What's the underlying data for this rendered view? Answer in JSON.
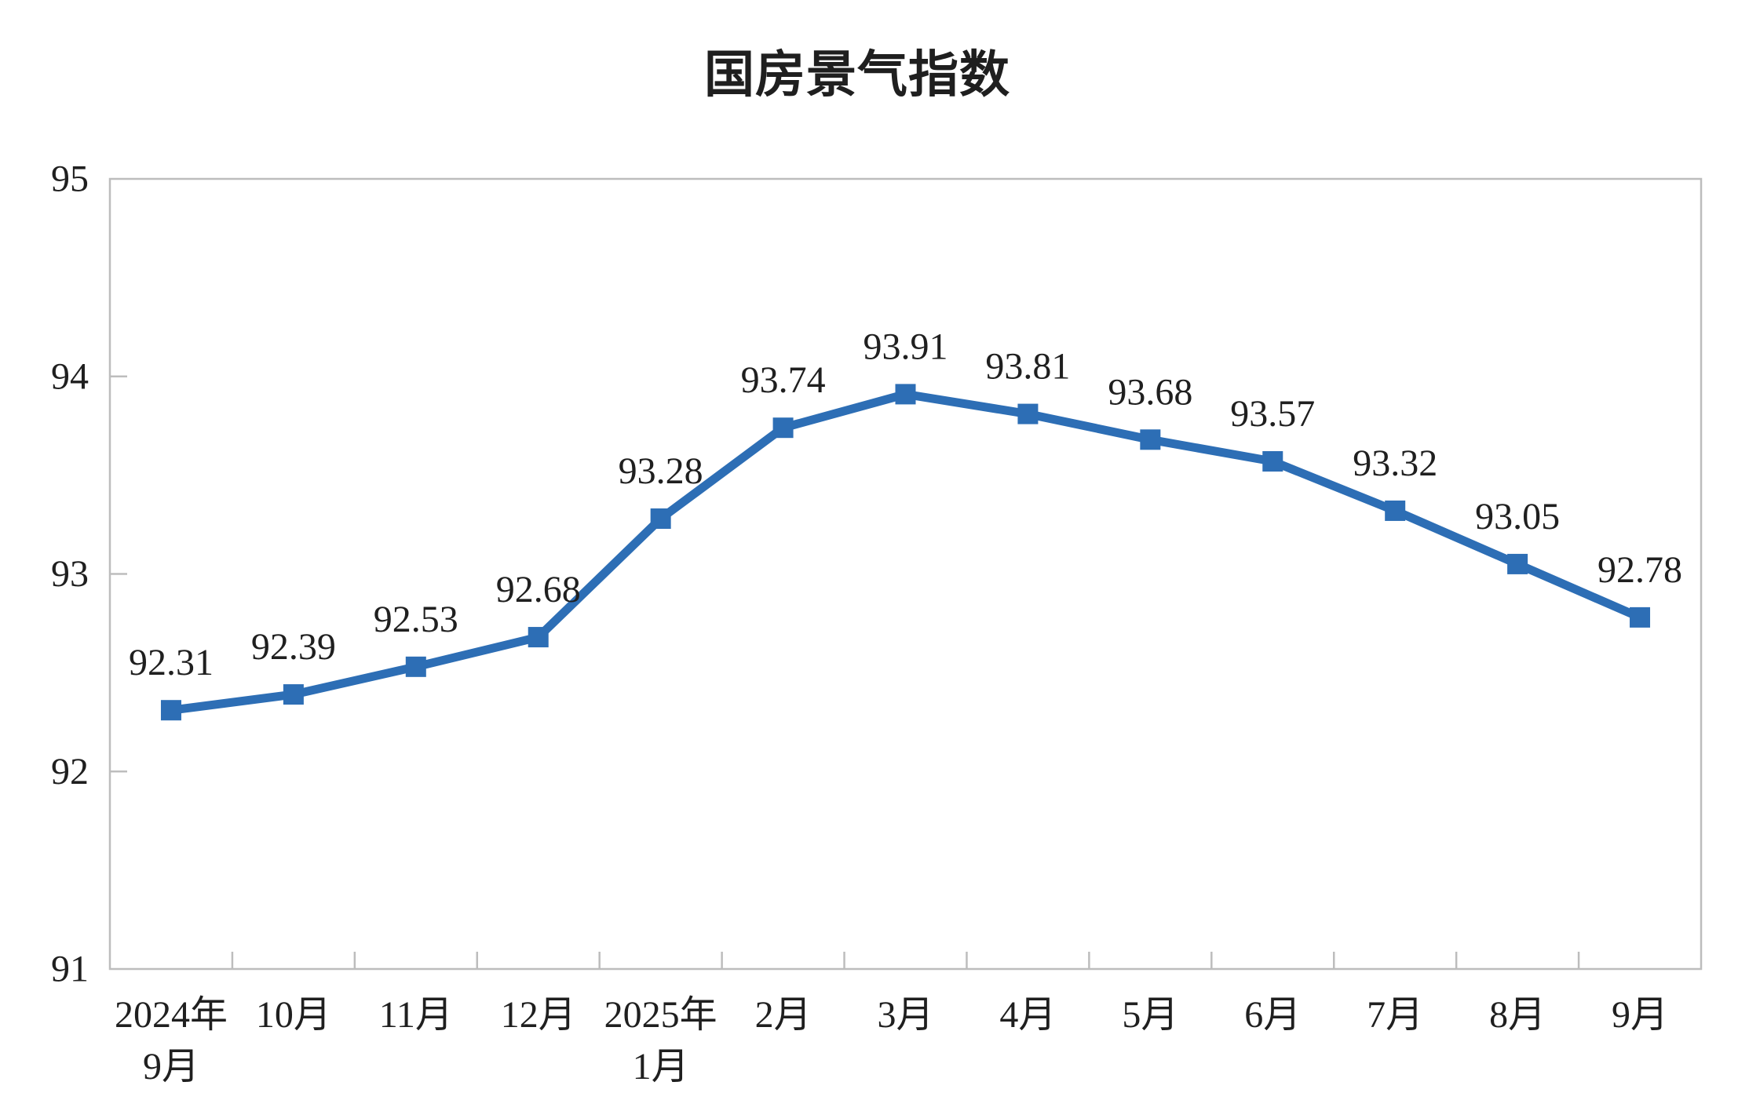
{
  "page": {
    "background": "#ffffff"
  },
  "chart_data": {
    "type": "line",
    "title": "国房景气指数",
    "categories": [
      "2024年\n9月",
      "10月",
      "11月",
      "12月",
      "2025年\n1月",
      "2月",
      "3月",
      "4月",
      "5月",
      "6月",
      "7月",
      "8月",
      "9月"
    ],
    "series": [
      {
        "name": "国房景气指数",
        "values": [
          92.31,
          92.39,
          92.53,
          92.68,
          93.28,
          93.74,
          93.91,
          93.81,
          93.68,
          93.57,
          93.32,
          93.05,
          92.78
        ]
      }
    ],
    "data_labels": [
      "92.31",
      "92.39",
      "92.53",
      "92.68",
      "93.28",
      "93.74",
      "93.91",
      "93.81",
      "93.68",
      "93.57",
      "93.32",
      "93.05",
      "92.78"
    ],
    "xlabel": "",
    "ylabel": "",
    "ylim": [
      91,
      95
    ],
    "yticks": [
      91,
      92,
      93,
      94,
      95
    ],
    "ytick_labels": [
      "91",
      "92",
      "93",
      "94",
      "95"
    ],
    "grid": false,
    "legend_position": "none",
    "marker": "square",
    "colors": {
      "line": "#2d6eb5",
      "axis": "#bdbdbd",
      "text": "#1f1f1f"
    }
  }
}
